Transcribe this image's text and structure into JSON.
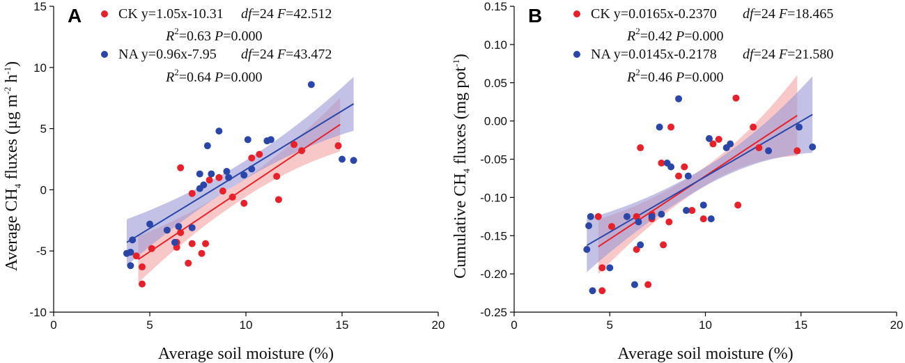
{
  "chart_data": [
    {
      "type": "scatter",
      "panel": "A",
      "xlabel": "Average soil moisture (%)",
      "ylabel": {
        "pre": "Average CH",
        "sub": "4",
        "mid": " fluxes (μg m",
        "sup1": "-2",
        "mid2": " h",
        "sup2": "-1",
        "post": ")"
      },
      "xlim": [
        0,
        20
      ],
      "ylim": [
        -10,
        15
      ],
      "xticks": [
        0,
        5,
        10,
        15,
        20
      ],
      "yticks": [
        -10,
        -5,
        0,
        5,
        10,
        15
      ],
      "series": [
        {
          "name": "CK",
          "color": "#e8202a",
          "band_color": "#f4a3a3",
          "equation": "y=1.05x-10.31",
          "df_label": "df",
          "df_value": "=24",
          "f_label": "F",
          "f_value": "=42.512",
          "r2_label": "R",
          "r2_sup": "2",
          "r2_value": "=0.63",
          "p_label": "P",
          "p_value": "=0.000",
          "slope": 1.05,
          "intercept": -10.31,
          "fit_range": [
            4.4,
            14.9
          ],
          "ci_halfwidth_ends": [
            1.9,
            2.2
          ],
          "ci_halfwidth_mid": 0.75,
          "points": [
            [
              4.3,
              -5.4
            ],
            [
              4.6,
              -6.3
            ],
            [
              4.6,
              -7.7
            ],
            [
              5.1,
              -4.8
            ],
            [
              6.4,
              -4.3
            ],
            [
              6.4,
              -4.7
            ],
            [
              6.6,
              1.8
            ],
            [
              6.6,
              -3.5
            ],
            [
              7.0,
              -6.0
            ],
            [
              7.2,
              -0.3
            ],
            [
              7.2,
              -4.4
            ],
            [
              7.7,
              -5.2
            ],
            [
              7.9,
              -4.4
            ],
            [
              8.1,
              0.8
            ],
            [
              8.6,
              1.0
            ],
            [
              8.8,
              -0.1
            ],
            [
              9.3,
              -0.6
            ],
            [
              9.9,
              -1.1
            ],
            [
              10.3,
              2.6
            ],
            [
              10.7,
              2.9
            ],
            [
              11.6,
              1.1
            ],
            [
              11.7,
              -0.8
            ],
            [
              12.5,
              3.7
            ],
            [
              12.9,
              3.2
            ],
            [
              14.8,
              3.6
            ]
          ]
        },
        {
          "name": "NA",
          "color": "#2a46a8",
          "band_color": "#9b99d6",
          "equation": "y=0.96x-7.95",
          "df_label": "df",
          "df_value": "=24",
          "f_label": "F",
          "f_value": "=43.472",
          "r2_label": "R",
          "r2_sup": "2",
          "r2_value": "=0.64",
          "p_label": "P",
          "p_value": "=0.000",
          "slope": 0.96,
          "intercept": -7.95,
          "fit_range": [
            3.8,
            15.6
          ],
          "ci_halfwidth_ends": [
            1.9,
            2.2
          ],
          "ci_halfwidth_mid": 0.75,
          "points": [
            [
              3.8,
              -5.2
            ],
            [
              4.0,
              -5.1
            ],
            [
              4.0,
              -6.2
            ],
            [
              4.1,
              -4.1
            ],
            [
              5.0,
              -2.8
            ],
            [
              5.9,
              -3.3
            ],
            [
              6.3,
              -4.3
            ],
            [
              6.5,
              -3.0
            ],
            [
              7.2,
              -3.1
            ],
            [
              7.6,
              1.3
            ],
            [
              7.6,
              0.1
            ],
            [
              7.8,
              0.4
            ],
            [
              8.0,
              3.6
            ],
            [
              8.2,
              1.3
            ],
            [
              8.6,
              4.8
            ],
            [
              9.0,
              1.5
            ],
            [
              9.1,
              1.0
            ],
            [
              9.9,
              1.2
            ],
            [
              10.1,
              4.1
            ],
            [
              10.3,
              1.7
            ],
            [
              11.1,
              4.0
            ],
            [
              11.3,
              4.1
            ],
            [
              13.4,
              8.6
            ],
            [
              15.0,
              2.5
            ],
            [
              15.6,
              2.4
            ]
          ]
        }
      ]
    },
    {
      "type": "scatter",
      "panel": "B",
      "xlabel": "Average soil moisture (%)",
      "ylabel": {
        "pre": "Cumulative CH",
        "sub": "4",
        "mid": " fluxes (mg pot",
        "sup1": "-1",
        "mid2": "",
        "sup2": "",
        "post": ")"
      },
      "xlim": [
        0,
        20
      ],
      "ylim": [
        -0.25,
        0.15
      ],
      "xticks": [
        0,
        5,
        10,
        15,
        20
      ],
      "yticks": [
        -0.25,
        -0.2,
        -0.15,
        -0.1,
        -0.05,
        0.0,
        0.05,
        0.1,
        0.15
      ],
      "ytick_labels": [
        "-0.25",
        "-0.20",
        "-0.15",
        "-0.10",
        "-0.05",
        "0.00",
        "0.05",
        "0.10",
        "0.15"
      ],
      "series": [
        {
          "name": "CK",
          "color": "#e8202a",
          "band_color": "#f4a3a3",
          "equation": "y=0.0165x-0.2370",
          "df_label": "df",
          "df_value": "=24",
          "f_label": "F",
          "f_value": "=18.465",
          "r2_label": "R",
          "r2_sup": "2",
          "r2_value": "=0.42",
          "p_label": "P",
          "p_value": "=0.000",
          "slope": 0.0165,
          "intercept": -0.237,
          "fit_range": [
            4.4,
            14.8
          ],
          "ci_halfwidth_ends": [
            0.036,
            0.053
          ],
          "ci_halfwidth_mid": 0.012,
          "points": [
            [
              4.4,
              -0.125
            ],
            [
              4.6,
              -0.192
            ],
            [
              4.6,
              -0.222
            ],
            [
              5.1,
              -0.138
            ],
            [
              6.4,
              -0.125
            ],
            [
              6.4,
              -0.168
            ],
            [
              6.6,
              -0.035
            ],
            [
              7.0,
              -0.214
            ],
            [
              7.2,
              -0.122
            ],
            [
              7.2,
              -0.128
            ],
            [
              7.7,
              -0.055
            ],
            [
              7.8,
              -0.162
            ],
            [
              8.1,
              -0.132
            ],
            [
              8.2,
              -0.008
            ],
            [
              8.6,
              -0.072
            ],
            [
              8.9,
              -0.06
            ],
            [
              9.3,
              -0.117
            ],
            [
              9.9,
              -0.128
            ],
            [
              10.4,
              -0.03
            ],
            [
              10.7,
              -0.024
            ],
            [
              11.6,
              0.03
            ],
            [
              11.7,
              -0.11
            ],
            [
              12.5,
              -0.008
            ],
            [
              12.8,
              -0.035
            ],
            [
              14.8,
              -0.039
            ]
          ]
        },
        {
          "name": "NA",
          "color": "#2a46a8",
          "band_color": "#9b99d6",
          "equation": "y=0.0145x-0.2178",
          "df_label": "df",
          "df_value": "=24",
          "f_label": "F",
          "f_value": "=21.580",
          "r2_label": "R",
          "r2_sup": "2",
          "r2_value": "=0.46",
          "p_label": "P",
          "p_value": "=0.000",
          "slope": 0.0145,
          "intercept": -0.2178,
          "fit_range": [
            3.8,
            15.6
          ],
          "ci_halfwidth_ends": [
            0.035,
            0.05
          ],
          "ci_halfwidth_mid": 0.012,
          "points": [
            [
              3.8,
              -0.168
            ],
            [
              3.9,
              -0.137
            ],
            [
              4.0,
              -0.125
            ],
            [
              4.1,
              -0.222
            ],
            [
              5.0,
              -0.192
            ],
            [
              5.9,
              -0.125
            ],
            [
              6.3,
              -0.214
            ],
            [
              6.5,
              -0.132
            ],
            [
              6.6,
              -0.162
            ],
            [
              7.2,
              -0.125
            ],
            [
              7.6,
              -0.008
            ],
            [
              7.7,
              -0.122
            ],
            [
              8.0,
              -0.055
            ],
            [
              8.2,
              -0.06
            ],
            [
              8.6,
              0.029
            ],
            [
              9.0,
              -0.117
            ],
            [
              9.1,
              -0.072
            ],
            [
              9.9,
              -0.11
            ],
            [
              10.2,
              -0.023
            ],
            [
              10.3,
              -0.128
            ],
            [
              11.1,
              -0.035
            ],
            [
              11.3,
              -0.03
            ],
            [
              13.3,
              -0.039
            ],
            [
              14.9,
              -0.008
            ],
            [
              15.6,
              -0.034
            ]
          ]
        }
      ]
    }
  ]
}
